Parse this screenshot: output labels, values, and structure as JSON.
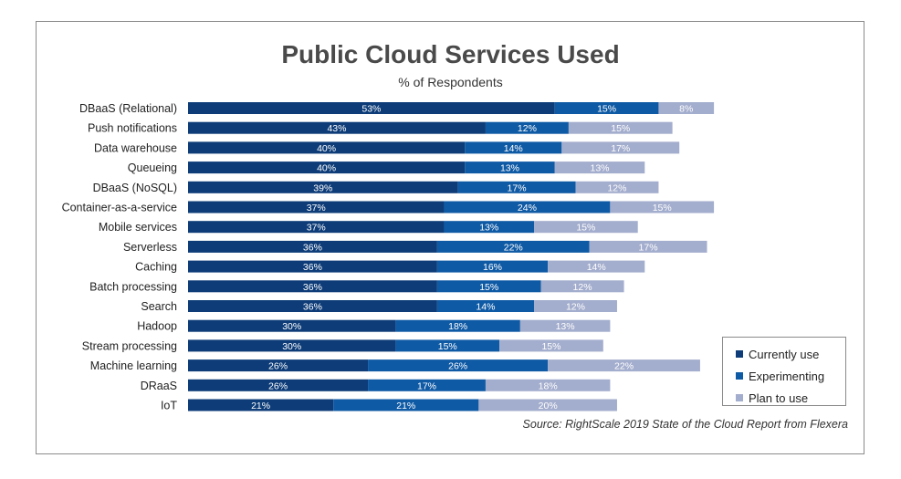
{
  "chart_data": {
    "type": "bar",
    "orientation": "horizontal",
    "stacked": true,
    "title": "Public Cloud Services Used",
    "subtitle": "% of  Respondents",
    "categories": [
      "DBaaS (Relational)",
      "Push notifications",
      "Data warehouse",
      "Queueing",
      "DBaaS (NoSQL)",
      "Container-as-a-service",
      "Mobile services",
      "Serverless",
      "Caching",
      "Batch processing",
      "Search",
      "Hadoop",
      "Stream processing",
      "Machine learning",
      "DRaaS",
      "IoT"
    ],
    "series": [
      {
        "name": "Currently use",
        "color": "#0d3c78",
        "values": [
          53,
          43,
          40,
          40,
          39,
          37,
          37,
          36,
          36,
          36,
          36,
          30,
          30,
          26,
          26,
          21
        ]
      },
      {
        "name": "Experimenting",
        "color": "#0f5aa5",
        "values": [
          15,
          12,
          14,
          13,
          17,
          24,
          13,
          22,
          16,
          15,
          14,
          18,
          15,
          26,
          17,
          21
        ]
      },
      {
        "name": "Plan to use",
        "color": "#a3adcd",
        "values": [
          8,
          15,
          17,
          13,
          12,
          15,
          15,
          17,
          14,
          12,
          12,
          13,
          15,
          22,
          18,
          20
        ]
      }
    ],
    "grid": false,
    "legend_position": "bottom-right",
    "source": "Source: RightScale 2019 State of the Cloud Report from Flexera"
  }
}
